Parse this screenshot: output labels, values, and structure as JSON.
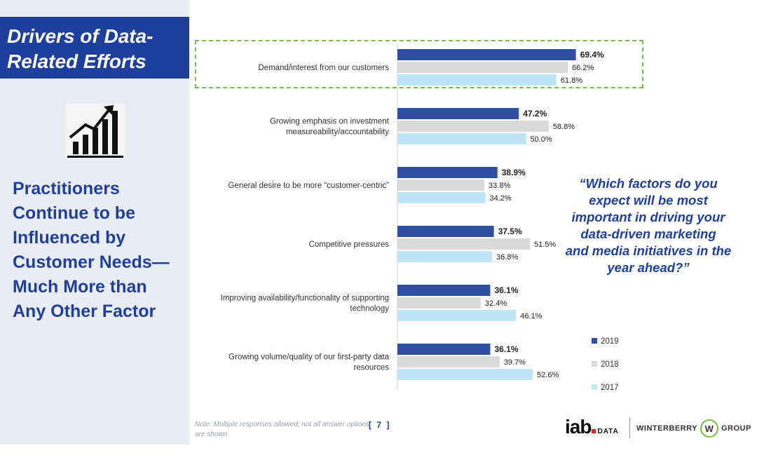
{
  "slide": {
    "title_lines": [
      "Drivers of Data-",
      "Related Efforts"
    ],
    "headline_lines": [
      "Practitioners",
      "Continue to be",
      "Influenced by",
      "Customer Needs—",
      "Much More than",
      "Any Other Factor"
    ],
    "question_lines": [
      "“Which factors do you",
      "expect will be most",
      "important in driving your",
      "data-driven marketing",
      "and media initiatives in the",
      "year ahead?”"
    ],
    "footnote": "Note: Multiple responses allowed; not all answer options are shown",
    "page_number": "[ 7 ]",
    "icon": "growth-chart-icon"
  },
  "logos": {
    "iab": "iab",
    "iab_sub": "DATA",
    "winterberry_left": "WINTERBERRY",
    "winterberry_mark": "W",
    "winterberry_right": "GROUP"
  },
  "colors": {
    "brand_blue": "#1f3f9c",
    "s2019": "#2e4fa3",
    "s2018": "#d9d9d9",
    "s2017": "#bfe6f7",
    "highlight": "#74c043"
  },
  "chart_data": {
    "type": "bar",
    "orientation": "horizontal",
    "categories": [
      [
        "Demand/interest from our customers"
      ],
      [
        "Growing emphasis on investment",
        "measureability/accountability"
      ],
      [
        "General desire to be more “customer-centric”"
      ],
      [
        "Competitive pressures"
      ],
      [
        "Improving availability/functionality of supporting",
        "technology"
      ],
      [
        "Growing volume/quality of our first-party data",
        "resources"
      ]
    ],
    "series": [
      {
        "name": "2019",
        "values": [
          69.4,
          47.2,
          38.9,
          37.5,
          36.1,
          36.1
        ],
        "labels": [
          "69.4%",
          "47.2%",
          "38.9%",
          "37.5%",
          "36.1%",
          "36.1%"
        ],
        "bold": true
      },
      {
        "name": "2018",
        "values": [
          66.2,
          58.8,
          33.8,
          51.5,
          32.4,
          39.7
        ],
        "labels": [
          "66.2%",
          "58.8%",
          "33.8%",
          "51.5%",
          "32.4%",
          "39.7%"
        ],
        "bold": false
      },
      {
        "name": "2017",
        "values": [
          61.8,
          50.0,
          34.2,
          36.8,
          46.1,
          52.6
        ],
        "labels": [
          "61.8%",
          "50.0%",
          "34.2%",
          "36.8%",
          "46.1%",
          "52.6%"
        ],
        "bold": false
      }
    ],
    "legend_position": "bottom-right",
    "highlighted_category": 0
  }
}
